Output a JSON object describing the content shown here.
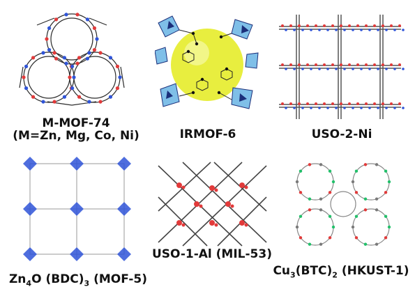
{
  "colors": {
    "oxygen": "#e23a3a",
    "carbon": "#7a7a7a",
    "metal_blue": "#2f54d8",
    "polyhedron_light": "#7fbfe8",
    "pore_yellow": "#e6ec2a",
    "chlorine_green": "#22c06a",
    "bond": "#333333"
  },
  "panels": [
    {
      "id": "mof74",
      "name_line1": "M-MOF-74",
      "name_line2": "(M=Zn, Mg, Co, Ni)"
    },
    {
      "id": "irmof6",
      "name": "IRMOF-6"
    },
    {
      "id": "uso2ni",
      "name": "USO-2-Ni"
    },
    {
      "id": "mof5",
      "name_prefix": "Zn",
      "sub1": "4",
      "name_mid": "O (BDC)",
      "sub2": "3",
      "name_suffix": " (MOF-5)"
    },
    {
      "id": "mil53",
      "name": "USO-1-Al (MIL-53)"
    },
    {
      "id": "hkust",
      "name_prefix": "Cu",
      "sub1": "3",
      "name_mid": "(BTC)",
      "sub2": "2",
      "name_suffix": " (HKUST-1)"
    }
  ]
}
